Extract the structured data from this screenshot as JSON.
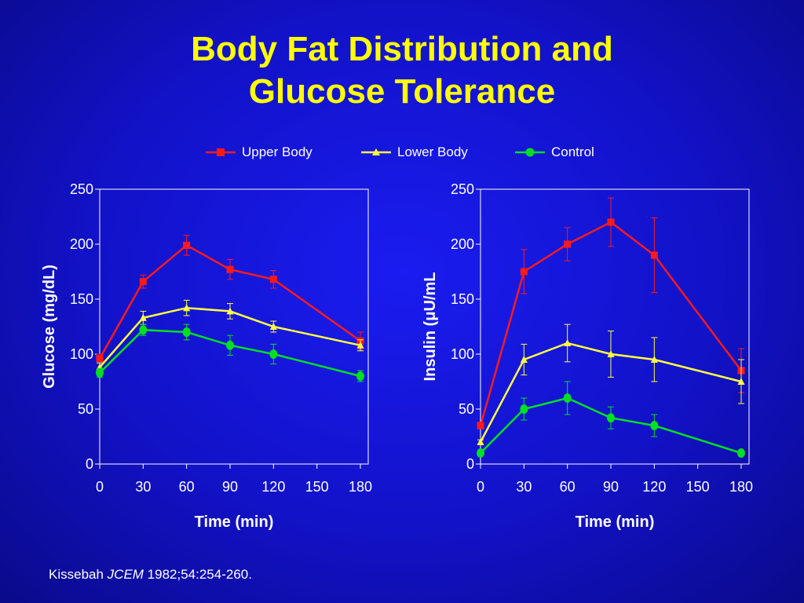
{
  "title_line1": "Body Fat Distribution and",
  "title_line2": "Glucose Tolerance",
  "legend": [
    {
      "label": "Upper Body",
      "color": "#ff1a1a",
      "marker": "square"
    },
    {
      "label": "Lower Body",
      "color": "#ffff40",
      "marker": "triangle"
    },
    {
      "label": "Control",
      "color": "#00e020",
      "marker": "circle"
    }
  ],
  "citation": {
    "author": "Kissebah ",
    "journal": "JCEM",
    "ref": " 1982;54:254-260."
  },
  "chart_data": [
    {
      "type": "line",
      "xlabel": "Time (min)",
      "ylabel": "Glucose (mg/dL)",
      "xlim": [
        0,
        180
      ],
      "ylim": [
        0,
        250
      ],
      "xticks": [
        0,
        30,
        60,
        90,
        120,
        150,
        180
      ],
      "yticks": [
        0,
        50,
        100,
        150,
        200,
        250
      ],
      "grid": false,
      "legend_position": "top",
      "series": [
        {
          "name": "Upper Body",
          "color": "#ff1a1a",
          "marker": "square",
          "x": [
            0,
            30,
            60,
            90,
            120,
            180
          ],
          "y": [
            96,
            166,
            199,
            177,
            168,
            112
          ],
          "err": [
            4,
            6,
            9,
            9,
            8,
            8
          ]
        },
        {
          "name": "Lower Body",
          "color": "#ffff40",
          "marker": "triangle",
          "x": [
            0,
            30,
            60,
            90,
            120,
            180
          ],
          "y": [
            88,
            133,
            142,
            139,
            125,
            108
          ],
          "err": [
            4,
            6,
            7,
            7,
            5,
            5
          ]
        },
        {
          "name": "Control",
          "color": "#00e020",
          "marker": "circle",
          "x": [
            0,
            30,
            60,
            90,
            120,
            180
          ],
          "y": [
            83,
            122,
            120,
            108,
            100,
            80
          ],
          "err": [
            4,
            5,
            7,
            9,
            9,
            5
          ]
        }
      ]
    },
    {
      "type": "line",
      "xlabel": "Time (min)",
      "ylabel": "Insulin (μU/mL",
      "xlim": [
        0,
        180
      ],
      "ylim": [
        0,
        250
      ],
      "xticks": [
        0,
        30,
        60,
        90,
        120,
        150,
        180
      ],
      "yticks": [
        0,
        50,
        100,
        150,
        200,
        250
      ],
      "grid": false,
      "legend_position": "top",
      "series": [
        {
          "name": "Upper Body",
          "color": "#ff1a1a",
          "marker": "square",
          "x": [
            0,
            30,
            60,
            90,
            120,
            180
          ],
          "y": [
            35,
            175,
            200,
            220,
            190,
            85
          ],
          "err": [
            3,
            20,
            15,
            22,
            34,
            20
          ]
        },
        {
          "name": "Lower Body",
          "color": "#ffff40",
          "marker": "triangle",
          "x": [
            0,
            30,
            60,
            90,
            120,
            180
          ],
          "y": [
            20,
            95,
            110,
            100,
            95,
            75
          ],
          "err": [
            2,
            14,
            17,
            21,
            20,
            20
          ]
        },
        {
          "name": "Control",
          "color": "#00e020",
          "marker": "circle",
          "x": [
            0,
            30,
            60,
            90,
            120,
            180
          ],
          "y": [
            10,
            50,
            60,
            42,
            35,
            10
          ],
          "err": [
            2,
            10,
            15,
            10,
            10,
            2
          ]
        }
      ]
    }
  ]
}
